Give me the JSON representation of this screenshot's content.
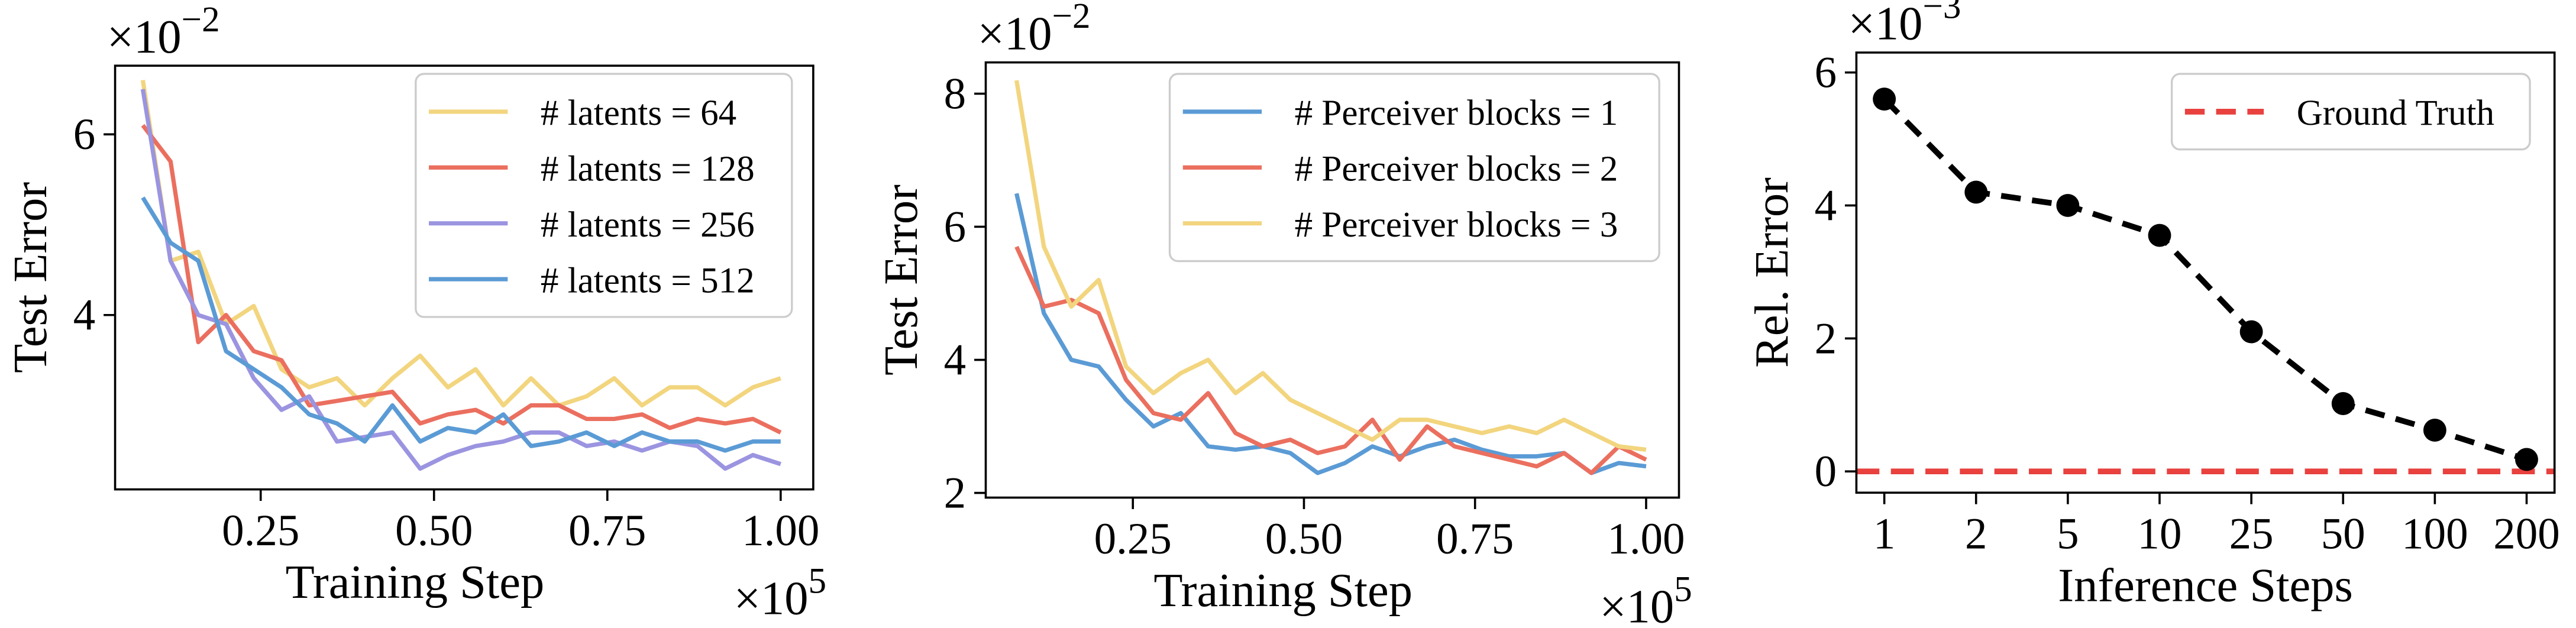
{
  "chart_data": [
    {
      "type": "line",
      "x_label": "Training Step",
      "y_label": "Test Error",
      "x_multiplier": {
        "base": "×10",
        "exponent": "5"
      },
      "y_multiplier": {
        "base": "×10",
        "exponent": "−2"
      },
      "x": [
        0.08,
        0.12,
        0.16,
        0.2,
        0.24,
        0.28,
        0.32,
        0.36,
        0.4,
        0.44,
        0.48,
        0.52,
        0.56,
        0.6,
        0.64,
        0.68,
        0.72,
        0.76,
        0.8,
        0.84,
        0.88,
        0.92,
        0.96,
        1.0
      ],
      "series": [
        {
          "name": "# latents = 64",
          "color": "#f2d57e",
          "values": [
            6.6,
            4.6,
            4.7,
            3.9,
            4.1,
            3.4,
            3.2,
            3.3,
            3.0,
            3.3,
            3.55,
            3.2,
            3.4,
            3.0,
            3.3,
            3.0,
            3.1,
            3.3,
            3.0,
            3.2,
            3.2,
            3.0,
            3.2,
            3.3
          ]
        },
        {
          "name": "# latents = 128",
          "color": "#eb6f5f",
          "values": [
            6.1,
            5.7,
            3.7,
            4.0,
            3.6,
            3.5,
            3.0,
            3.05,
            3.1,
            3.15,
            2.8,
            2.9,
            2.95,
            2.8,
            3.0,
            3.0,
            2.85,
            2.85,
            2.9,
            2.75,
            2.85,
            2.8,
            2.85,
            2.7
          ]
        },
        {
          "name": "# latents = 256",
          "color": "#9b94e0",
          "values": [
            6.5,
            4.6,
            4.0,
            3.9,
            3.3,
            2.95,
            3.1,
            2.6,
            2.65,
            2.7,
            2.3,
            2.45,
            2.55,
            2.6,
            2.7,
            2.7,
            2.55,
            2.6,
            2.5,
            2.6,
            2.55,
            2.3,
            2.45,
            2.35
          ]
        },
        {
          "name": "# latents = 512",
          "color": "#5b9bd5",
          "values": [
            5.3,
            4.8,
            4.6,
            3.6,
            3.4,
            3.2,
            2.9,
            2.8,
            2.6,
            3.0,
            2.6,
            2.75,
            2.7,
            2.9,
            2.55,
            2.6,
            2.7,
            2.55,
            2.7,
            2.6,
            2.6,
            2.5,
            2.6,
            2.6
          ]
        }
      ],
      "xlim": [
        0.04,
        1.047
      ],
      "xticks": [
        {
          "value": 0.25,
          "label": "0.25"
        },
        {
          "value": 0.5,
          "label": "0.50"
        },
        {
          "value": 0.75,
          "label": "0.75"
        },
        {
          "value": 1,
          "label": "1.00"
        }
      ],
      "ylim": [
        2.07,
        6.76
      ],
      "yticks": [
        4,
        6
      ],
      "legend": "upper right"
    },
    {
      "type": "line",
      "x_label": "Training Step",
      "y_label": "Test Error",
      "x_multiplier": {
        "base": "×10",
        "exponent": "5"
      },
      "y_multiplier": {
        "base": "×10",
        "exponent": "−2"
      },
      "x": [
        0.08,
        0.12,
        0.16,
        0.2,
        0.24,
        0.28,
        0.32,
        0.36,
        0.4,
        0.44,
        0.48,
        0.52,
        0.56,
        0.6,
        0.64,
        0.68,
        0.72,
        0.76,
        0.8,
        0.84,
        0.88,
        0.92,
        0.96,
        1.0
      ],
      "series": [
        {
          "name": "# Perceiver blocks = 1",
          "color": "#5b9bd5",
          "values": [
            6.5,
            4.7,
            4.0,
            3.9,
            3.4,
            3.0,
            3.2,
            2.7,
            2.65,
            2.7,
            2.6,
            2.3,
            2.45,
            2.7,
            2.55,
            2.7,
            2.8,
            2.65,
            2.55,
            2.55,
            2.6,
            2.3,
            2.45,
            2.4
          ]
        },
        {
          "name": "# Perceiver blocks = 2",
          "color": "#eb6f5f",
          "values": [
            5.7,
            4.8,
            4.9,
            4.7,
            3.7,
            3.2,
            3.1,
            3.5,
            2.9,
            2.7,
            2.8,
            2.6,
            2.7,
            3.1,
            2.5,
            3.0,
            2.7,
            2.6,
            2.5,
            2.4,
            2.6,
            2.3,
            2.7,
            2.5
          ]
        },
        {
          "name": "# Perceiver blocks = 3",
          "color": "#f2d57e",
          "values": [
            8.2,
            5.7,
            4.8,
            5.2,
            3.9,
            3.5,
            3.8,
            4.0,
            3.5,
            3.8,
            3.4,
            3.2,
            3.0,
            2.8,
            3.1,
            3.1,
            3.0,
            2.9,
            3.0,
            2.9,
            3.1,
            2.9,
            2.7,
            2.65
          ]
        }
      ],
      "xlim": [
        0.035,
        1.048
      ],
      "xticks": [
        {
          "value": 0.25,
          "label": "0.25"
        },
        {
          "value": 0.5,
          "label": "0.50"
        },
        {
          "value": 0.75,
          "label": "0.75"
        },
        {
          "value": 1,
          "label": "1.00"
        }
      ],
      "ylim": [
        1.93,
        8.47
      ],
      "yticks": [
        2,
        4,
        6,
        8
      ],
      "legend": "upper right"
    },
    {
      "type": "line",
      "x_label": "Inference Steps",
      "y_label": "Rel. Error",
      "y_multiplier": {
        "base": "×10",
        "exponent": "−3"
      },
      "categories": [
        "1",
        "2",
        "5",
        "10",
        "25",
        "50",
        "100",
        "200"
      ],
      "series": [
        {
          "color": "#000000",
          "values": [
            5.6,
            4.2,
            4.0,
            3.55,
            2.1,
            1.02,
            0.62,
            0.18
          ]
        }
      ],
      "markers": true,
      "dashed": true,
      "reference_line": {
        "name": "Ground Truth",
        "value": 0,
        "color": "#e8413e"
      },
      "ylim": [
        -0.32,
        6.3
      ],
      "yticks": [
        0,
        2,
        4,
        6
      ],
      "legend": "upper right"
    }
  ]
}
